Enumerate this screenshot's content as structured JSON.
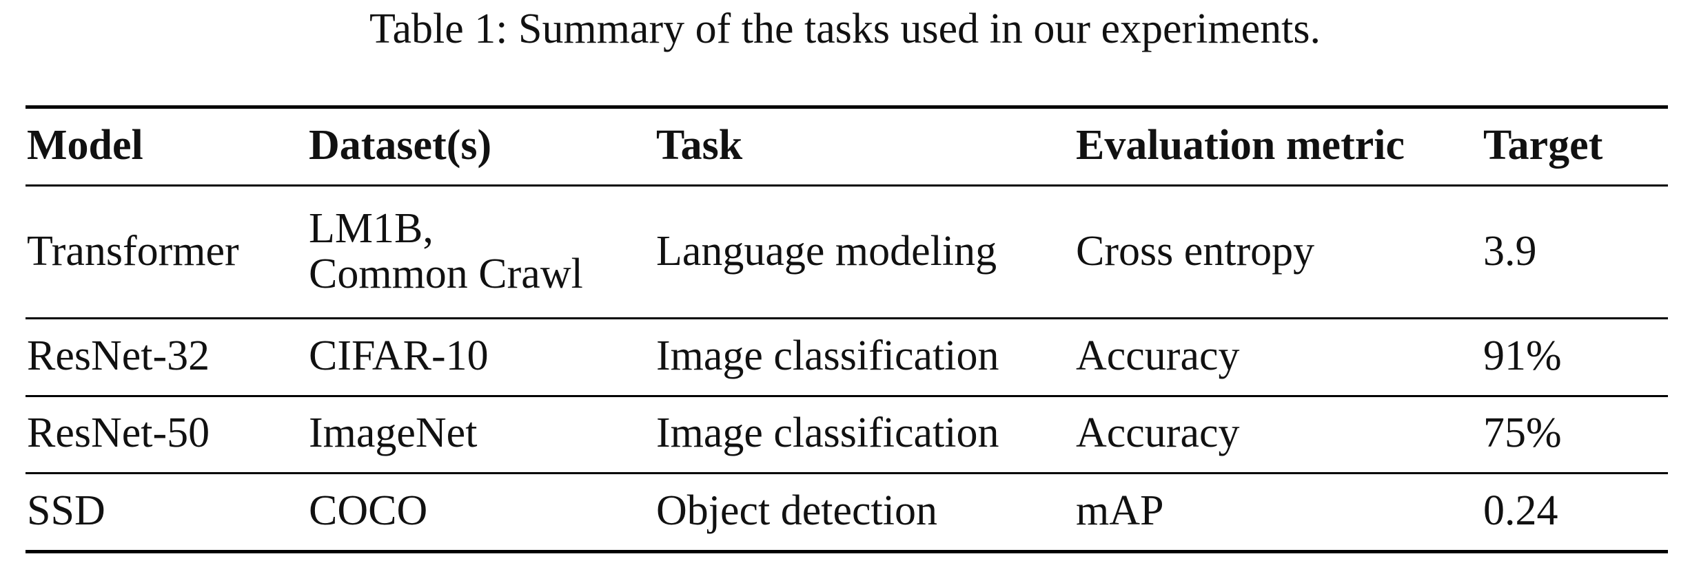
{
  "caption": "Table 1: Summary of the tasks used in our experiments.",
  "table": {
    "headers": [
      "Model",
      "Dataset(s)",
      "Task",
      "Evaluation metric",
      "Target"
    ],
    "rows": [
      {
        "model": "Transformer",
        "datasets": [
          "LM1B,",
          "Common Crawl"
        ],
        "task": "Language modeling",
        "metric": "Cross entropy",
        "target": "3.9"
      },
      {
        "model": "ResNet-32",
        "datasets": [
          "CIFAR-10"
        ],
        "task": "Image classification",
        "metric": "Accuracy",
        "target": "91%"
      },
      {
        "model": "ResNet-50",
        "datasets": [
          "ImageNet"
        ],
        "task": "Image classification",
        "metric": "Accuracy",
        "target": "75%"
      },
      {
        "model": "SSD",
        "datasets": [
          "COCO"
        ],
        "task": "Object detection",
        "metric": "mAP",
        "target": "0.24"
      }
    ]
  }
}
